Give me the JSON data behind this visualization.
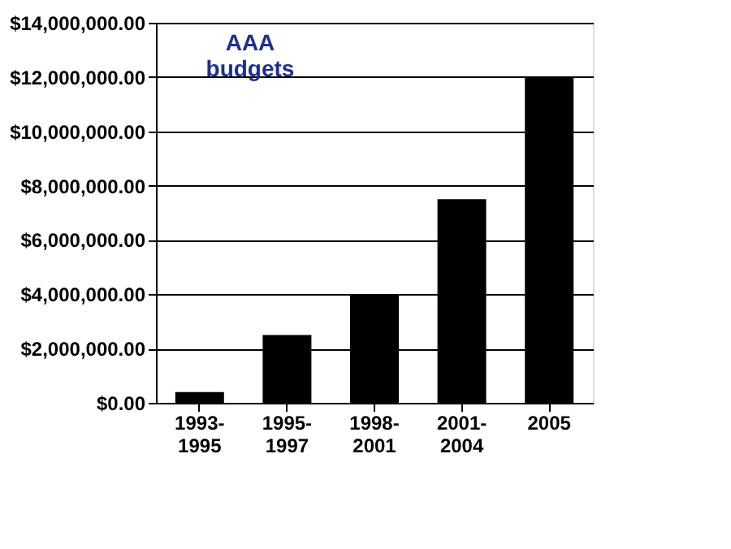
{
  "chart_data": {
    "type": "bar",
    "title": "AAA budgets",
    "categories": [
      "1993-1995",
      "1995-1997",
      "1998-2001",
      "2001-2004",
      "2005"
    ],
    "values": [
      400000,
      2500000,
      4000000,
      7500000,
      12000000
    ],
    "color": "#000000",
    "ylim": [
      0,
      14000000
    ],
    "yticks": [
      {
        "value": 0,
        "label": "$0.00"
      },
      {
        "value": 2000000,
        "label": "$2,000,000.00"
      },
      {
        "value": 4000000,
        "label": "$4,000,000.00"
      },
      {
        "value": 6000000,
        "label": "$6,000,000.00"
      },
      {
        "value": 8000000,
        "label": "$8,000,000.00"
      },
      {
        "value": 10000000,
        "label": "$10,000,000.00"
      },
      {
        "value": 12000000,
        "label": "$12,000,000.00"
      },
      {
        "value": 14000000,
        "label": "$14,000,000.00"
      }
    ],
    "grid": "y"
  }
}
